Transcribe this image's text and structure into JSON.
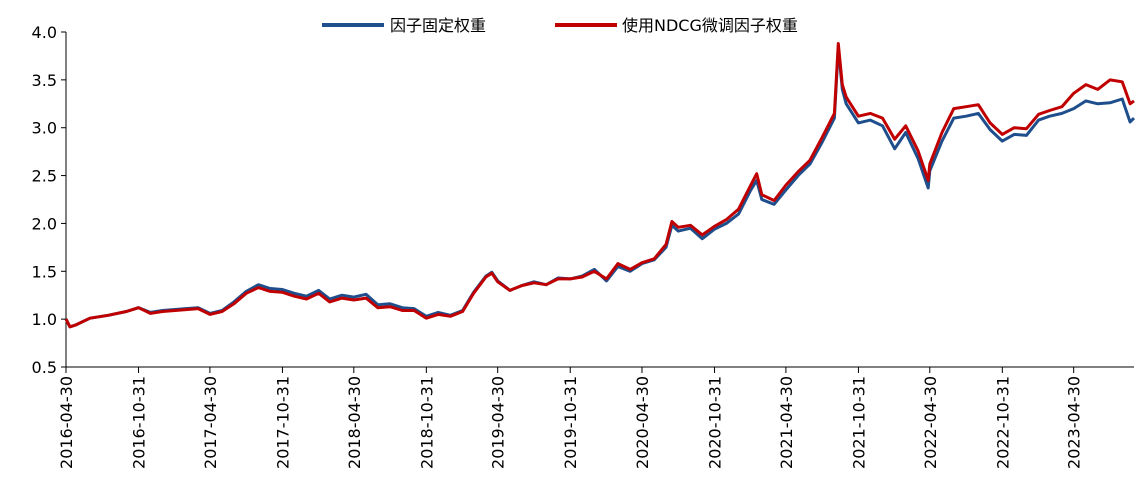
{
  "chart_data": {
    "type": "line",
    "title": "",
    "xlabel": "",
    "ylabel": "",
    "ylim": [
      0.5,
      4.0
    ],
    "yticks": [
      "0.5",
      "1.0",
      "1.5",
      "2.0",
      "2.5",
      "3.0",
      "3.5",
      "4.0"
    ],
    "x_start": "2016-04-30",
    "x_end": "2023-09-30",
    "xticks": [
      "2016-04-30",
      "2016-10-31",
      "2017-04-30",
      "2017-10-31",
      "2018-04-30",
      "2018-10-31",
      "2019-04-30",
      "2019-10-31",
      "2020-04-30",
      "2020-10-31",
      "2021-04-30",
      "2021-10-31",
      "2022-04-30",
      "2022-10-31",
      "2023-04-30"
    ],
    "grid": false,
    "legend_position": "top-center",
    "series": [
      {
        "name": "因子固定权重",
        "color": "#1F4E8C",
        "points": [
          [
            "2016-04-30",
            1.0
          ],
          [
            "2016-05-10",
            0.92
          ],
          [
            "2016-05-25",
            0.94
          ],
          [
            "2016-06-30",
            1.01
          ],
          [
            "2016-08-15",
            1.04
          ],
          [
            "2016-09-30",
            1.08
          ],
          [
            "2016-10-31",
            1.12
          ],
          [
            "2016-11-30",
            1.07
          ],
          [
            "2016-12-31",
            1.09
          ],
          [
            "2017-02-28",
            1.11
          ],
          [
            "2017-03-31",
            1.12
          ],
          [
            "2017-04-30",
            1.06
          ],
          [
            "2017-05-31",
            1.09
          ],
          [
            "2017-06-30",
            1.18
          ],
          [
            "2017-07-31",
            1.29
          ],
          [
            "2017-08-31",
            1.36
          ],
          [
            "2017-09-30",
            1.32
          ],
          [
            "2017-10-31",
            1.31
          ],
          [
            "2017-11-30",
            1.27
          ],
          [
            "2017-12-31",
            1.24
          ],
          [
            "2018-01-31",
            1.3
          ],
          [
            "2018-02-28",
            1.21
          ],
          [
            "2018-03-31",
            1.25
          ],
          [
            "2018-04-30",
            1.23
          ],
          [
            "2018-05-31",
            1.26
          ],
          [
            "2018-06-30",
            1.15
          ],
          [
            "2018-07-31",
            1.16
          ],
          [
            "2018-08-31",
            1.12
          ],
          [
            "2018-09-30",
            1.11
          ],
          [
            "2018-10-31",
            1.03
          ],
          [
            "2018-11-30",
            1.07
          ],
          [
            "2018-12-31",
            1.04
          ],
          [
            "2019-01-31",
            1.09
          ],
          [
            "2019-02-28",
            1.28
          ],
          [
            "2019-03-31",
            1.45
          ],
          [
            "2019-04-15",
            1.49
          ],
          [
            "2019-04-30",
            1.4
          ],
          [
            "2019-05-31",
            1.3
          ],
          [
            "2019-06-30",
            1.35
          ],
          [
            "2019-07-31",
            1.39
          ],
          [
            "2019-08-31",
            1.36
          ],
          [
            "2019-09-30",
            1.43
          ],
          [
            "2019-10-31",
            1.42
          ],
          [
            "2019-11-30",
            1.45
          ],
          [
            "2019-12-31",
            1.52
          ],
          [
            "2020-01-31",
            1.4
          ],
          [
            "2020-02-29",
            1.55
          ],
          [
            "2020-03-31",
            1.5
          ],
          [
            "2020-04-30",
            1.58
          ],
          [
            "2020-05-31",
            1.62
          ],
          [
            "2020-06-30",
            1.75
          ],
          [
            "2020-07-15",
            1.98
          ],
          [
            "2020-07-31",
            1.92
          ],
          [
            "2020-08-31",
            1.95
          ],
          [
            "2020-09-30",
            1.84
          ],
          [
            "2020-10-31",
            1.94
          ],
          [
            "2020-11-30",
            2.0
          ],
          [
            "2020-12-31",
            2.1
          ],
          [
            "2021-01-31",
            2.35
          ],
          [
            "2021-02-15",
            2.45
          ],
          [
            "2021-02-28",
            2.25
          ],
          [
            "2021-03-31",
            2.2
          ],
          [
            "2021-04-30",
            2.35
          ],
          [
            "2021-05-31",
            2.5
          ],
          [
            "2021-06-30",
            2.62
          ],
          [
            "2021-07-31",
            2.85
          ],
          [
            "2021-08-31",
            3.1
          ],
          [
            "2021-09-10",
            3.84
          ],
          [
            "2021-09-20",
            3.4
          ],
          [
            "2021-09-30",
            3.25
          ],
          [
            "2021-10-31",
            3.05
          ],
          [
            "2021-11-30",
            3.08
          ],
          [
            "2021-12-31",
            3.02
          ],
          [
            "2022-01-31",
            2.78
          ],
          [
            "2022-02-28",
            2.95
          ],
          [
            "2022-03-31",
            2.68
          ],
          [
            "2022-04-26",
            2.37
          ],
          [
            "2022-04-30",
            2.55
          ],
          [
            "2022-05-31",
            2.86
          ],
          [
            "2022-06-30",
            3.1
          ],
          [
            "2022-07-31",
            3.12
          ],
          [
            "2022-08-31",
            3.15
          ],
          [
            "2022-09-30",
            2.98
          ],
          [
            "2022-10-31",
            2.86
          ],
          [
            "2022-11-30",
            2.93
          ],
          [
            "2022-12-31",
            2.92
          ],
          [
            "2023-01-31",
            3.08
          ],
          [
            "2023-02-28",
            3.12
          ],
          [
            "2023-03-31",
            3.15
          ],
          [
            "2023-04-30",
            3.2
          ],
          [
            "2023-05-31",
            3.28
          ],
          [
            "2023-06-30",
            3.25
          ],
          [
            "2023-07-31",
            3.26
          ],
          [
            "2023-08-31",
            3.3
          ],
          [
            "2023-09-20",
            3.06
          ],
          [
            "2023-09-30",
            3.1
          ]
        ]
      },
      {
        "name": "使用NDCG微调因子权重",
        "color": "#C00000",
        "points": [
          [
            "2016-04-30",
            1.0
          ],
          [
            "2016-05-10",
            0.92
          ],
          [
            "2016-05-25",
            0.94
          ],
          [
            "2016-06-30",
            1.01
          ],
          [
            "2016-08-15",
            1.04
          ],
          [
            "2016-09-30",
            1.08
          ],
          [
            "2016-10-31",
            1.12
          ],
          [
            "2016-11-30",
            1.06
          ],
          [
            "2016-12-31",
            1.08
          ],
          [
            "2017-02-28",
            1.1
          ],
          [
            "2017-03-31",
            1.11
          ],
          [
            "2017-04-30",
            1.05
          ],
          [
            "2017-05-31",
            1.08
          ],
          [
            "2017-06-30",
            1.16
          ],
          [
            "2017-07-31",
            1.27
          ],
          [
            "2017-08-31",
            1.33
          ],
          [
            "2017-09-30",
            1.29
          ],
          [
            "2017-10-31",
            1.28
          ],
          [
            "2017-11-30",
            1.24
          ],
          [
            "2017-12-31",
            1.21
          ],
          [
            "2018-01-31",
            1.27
          ],
          [
            "2018-02-28",
            1.18
          ],
          [
            "2018-03-31",
            1.22
          ],
          [
            "2018-04-30",
            1.2
          ],
          [
            "2018-05-31",
            1.22
          ],
          [
            "2018-06-30",
            1.12
          ],
          [
            "2018-07-31",
            1.13
          ],
          [
            "2018-08-31",
            1.09
          ],
          [
            "2018-09-30",
            1.09
          ],
          [
            "2018-10-31",
            1.01
          ],
          [
            "2018-11-30",
            1.05
          ],
          [
            "2018-12-31",
            1.03
          ],
          [
            "2019-01-31",
            1.08
          ],
          [
            "2019-02-28",
            1.27
          ],
          [
            "2019-03-31",
            1.44
          ],
          [
            "2019-04-15",
            1.48
          ],
          [
            "2019-04-30",
            1.39
          ],
          [
            "2019-05-31",
            1.3
          ],
          [
            "2019-06-30",
            1.35
          ],
          [
            "2019-07-31",
            1.38
          ],
          [
            "2019-08-31",
            1.36
          ],
          [
            "2019-09-30",
            1.42
          ],
          [
            "2019-10-31",
            1.42
          ],
          [
            "2019-11-30",
            1.44
          ],
          [
            "2019-12-31",
            1.5
          ],
          [
            "2020-01-31",
            1.42
          ],
          [
            "2020-02-29",
            1.58
          ],
          [
            "2020-03-31",
            1.52
          ],
          [
            "2020-04-30",
            1.59
          ],
          [
            "2020-05-31",
            1.63
          ],
          [
            "2020-06-30",
            1.78
          ],
          [
            "2020-07-15",
            2.02
          ],
          [
            "2020-07-31",
            1.96
          ],
          [
            "2020-08-31",
            1.98
          ],
          [
            "2020-09-30",
            1.88
          ],
          [
            "2020-10-31",
            1.97
          ],
          [
            "2020-11-30",
            2.04
          ],
          [
            "2020-12-31",
            2.15
          ],
          [
            "2021-01-31",
            2.4
          ],
          [
            "2021-02-15",
            2.52
          ],
          [
            "2021-02-28",
            2.3
          ],
          [
            "2021-03-31",
            2.24
          ],
          [
            "2021-04-30",
            2.4
          ],
          [
            "2021-05-31",
            2.54
          ],
          [
            "2021-06-30",
            2.66
          ],
          [
            "2021-07-31",
            2.9
          ],
          [
            "2021-08-31",
            3.15
          ],
          [
            "2021-09-10",
            3.88
          ],
          [
            "2021-09-20",
            3.45
          ],
          [
            "2021-09-30",
            3.32
          ],
          [
            "2021-10-31",
            3.12
          ],
          [
            "2021-11-30",
            3.15
          ],
          [
            "2021-12-31",
            3.1
          ],
          [
            "2022-01-31",
            2.88
          ],
          [
            "2022-02-28",
            3.02
          ],
          [
            "2022-03-31",
            2.76
          ],
          [
            "2022-04-26",
            2.45
          ],
          [
            "2022-04-30",
            2.62
          ],
          [
            "2022-05-31",
            2.95
          ],
          [
            "2022-06-30",
            3.2
          ],
          [
            "2022-07-31",
            3.22
          ],
          [
            "2022-08-31",
            3.24
          ],
          [
            "2022-09-30",
            3.05
          ],
          [
            "2022-10-31",
            2.93
          ],
          [
            "2022-11-30",
            3.0
          ],
          [
            "2022-12-31",
            2.99
          ],
          [
            "2023-01-31",
            3.14
          ],
          [
            "2023-02-28",
            3.18
          ],
          [
            "2023-03-31",
            3.22
          ],
          [
            "2023-04-30",
            3.36
          ],
          [
            "2023-05-31",
            3.45
          ],
          [
            "2023-06-30",
            3.4
          ],
          [
            "2023-07-31",
            3.5
          ],
          [
            "2023-08-31",
            3.48
          ],
          [
            "2023-09-20",
            3.25
          ],
          [
            "2023-09-30",
            3.28
          ]
        ]
      }
    ]
  }
}
